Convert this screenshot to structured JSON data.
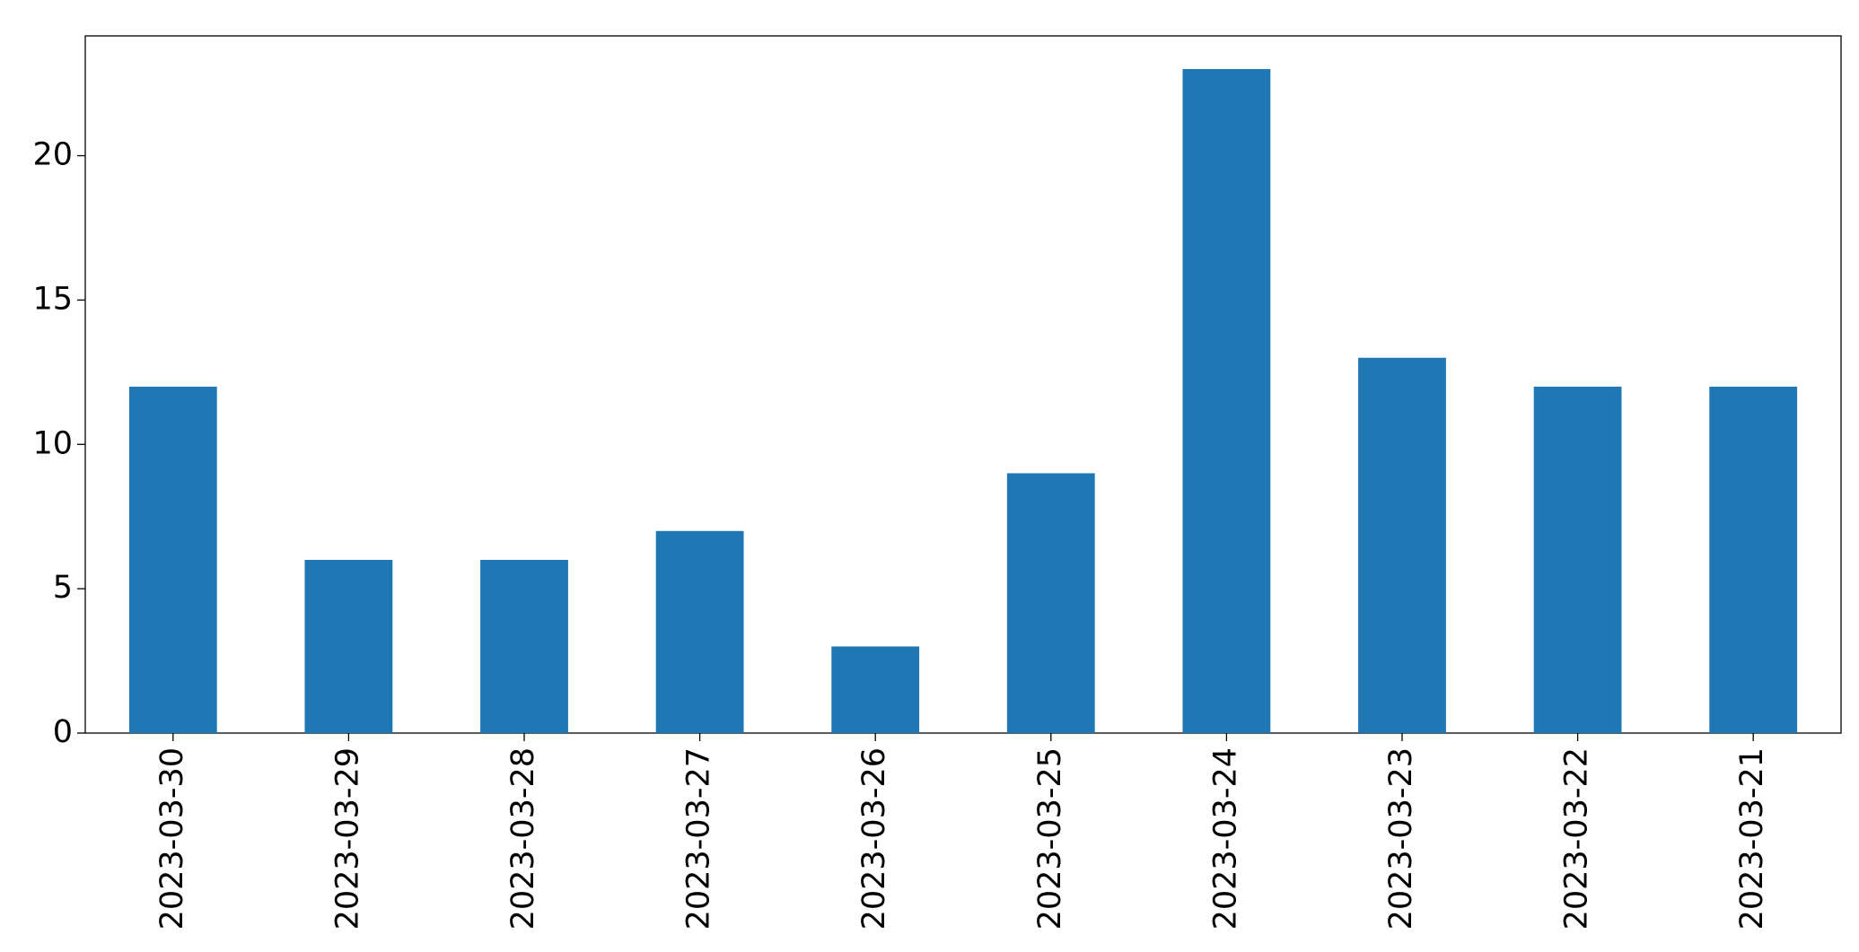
{
  "chart_data": {
    "type": "bar",
    "categories": [
      "2023-03-30",
      "2023-03-29",
      "2023-03-28",
      "2023-03-27",
      "2023-03-26",
      "2023-03-25",
      "2023-03-24",
      "2023-03-23",
      "2023-03-22",
      "2023-03-21"
    ],
    "values": [
      12,
      6,
      6,
      7,
      3,
      9,
      23,
      13,
      12,
      12
    ],
    "color": "#1f77b4",
    "ylim": [
      0,
      24.15
    ],
    "yticks": [
      0,
      5,
      10,
      15,
      20
    ],
    "grid": false
  }
}
